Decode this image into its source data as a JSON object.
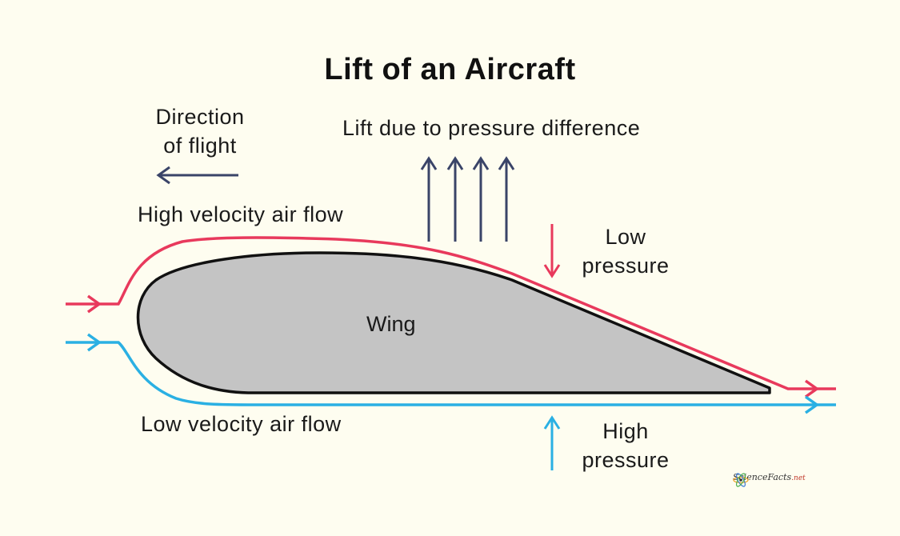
{
  "title": "Lift of an Aircraft",
  "labels": {
    "direction_line1": "Direction",
    "direction_line2": "of flight",
    "lift": "Lift due to pressure difference",
    "high_velocity": "High velocity air flow",
    "low_pressure_line1": "Low",
    "low_pressure_line2": "pressure",
    "wing": "Wing",
    "low_velocity": "Low velocity air flow",
    "high_pressure_line1": "High",
    "high_pressure_line2": "pressure"
  },
  "logo": {
    "name": "ScienceFacts",
    "suffix": ".net"
  },
  "colors": {
    "background": "#fefdf0",
    "upper_flow": "#e8395c",
    "lower_flow": "#2ab0e3",
    "arrows": "#3a4468",
    "wing_fill": "#c4c4c4",
    "wing_outline": "#111111"
  }
}
